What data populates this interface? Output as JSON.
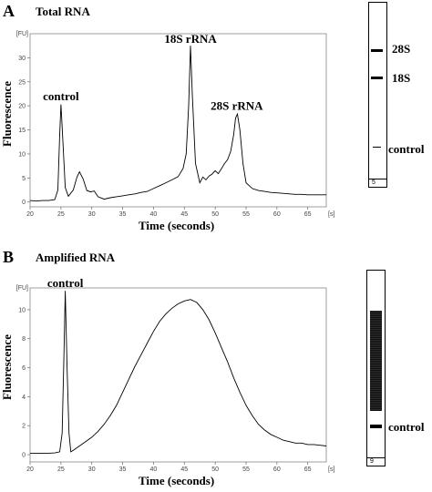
{
  "panels": [
    {
      "letter": "A",
      "title": "Total RNA",
      "ylabel": "Fluorescence",
      "xlabel": "Time (seconds)",
      "lane_number": "5",
      "bands": [
        {
          "label": "28S",
          "time": 53.5,
          "strong": true
        },
        {
          "label": "18S",
          "time": 46,
          "strong": true
        },
        {
          "label": "control",
          "time": 25,
          "strong": false
        }
      ]
    },
    {
      "letter": "B",
      "title": "Amplified RNA",
      "ylabel": "Fluorescence",
      "xlabel": "Time (seconds)",
      "lane_number": "9",
      "bands": [
        {
          "label": "control",
          "time": 26,
          "strong": true
        }
      ]
    }
  ],
  "chart_data": [
    {
      "type": "line",
      "title": "Total RNA",
      "xlabel": "Time (seconds)",
      "ylabel": "Fluorescence",
      "y_unit": "[FU]",
      "x_unit": "[s]",
      "xlim": [
        20,
        68
      ],
      "ylim": [
        -1,
        35
      ],
      "xticks": [
        20,
        25,
        30,
        35,
        40,
        45,
        50,
        55,
        60,
        65
      ],
      "yticks": [
        0,
        5,
        10,
        15,
        20,
        25,
        30
      ],
      "annotations": [
        {
          "text": "control",
          "x": 25,
          "y": 20
        },
        {
          "text": "18S  rRNA",
          "x": 46,
          "y": 32
        },
        {
          "text": "28S  rRNA",
          "x": 53.5,
          "y": 18
        }
      ],
      "series": [
        {
          "x": [
            20,
            21,
            22,
            23,
            24,
            24.5,
            24.8,
            25,
            25.3,
            25.7,
            26.2,
            27,
            27.6,
            28,
            28.6,
            29.2,
            29.8,
            30.4,
            31,
            32,
            33,
            34,
            35,
            36,
            37,
            38,
            39,
            40,
            41,
            42,
            43,
            44,
            44.8,
            45.3,
            45.7,
            46,
            46.3,
            46.8,
            47.5,
            48,
            48.5,
            49,
            49.5,
            50,
            50.5,
            51,
            51.5,
            52,
            52.5,
            53,
            53.3,
            53.6,
            54,
            54.5,
            55,
            56,
            57,
            58,
            59,
            60,
            61,
            62,
            63,
            64,
            65,
            66,
            67,
            68
          ],
          "y": [
            0.3,
            0.2,
            0.3,
            0.3,
            0.5,
            2.5,
            14,
            20.3,
            13,
            3,
            1.2,
            2.5,
            5.2,
            6.3,
            4.8,
            2.4,
            2.1,
            2.3,
            1.1,
            0.6,
            0.9,
            1.1,
            1.3,
            1.5,
            1.7,
            2.0,
            2.2,
            2.8,
            3.4,
            4.0,
            4.6,
            5.3,
            7,
            10,
            20,
            32.5,
            22,
            8,
            4,
            5.2,
            4.6,
            5.4,
            5.8,
            6.5,
            5.9,
            6.9,
            8,
            8.8,
            10.5,
            14,
            17.5,
            18.3,
            15,
            8,
            4,
            2.8,
            2.4,
            2.2,
            2.0,
            1.9,
            1.8,
            1.7,
            1.6,
            1.6,
            1.5,
            1.5,
            1.5,
            1.5
          ]
        }
      ]
    },
    {
      "type": "line",
      "title": "Amplified RNA",
      "xlabel": "Time (seconds)",
      "ylabel": "Fluorescence",
      "y_unit": "[FU]",
      "x_unit": "[s]",
      "xlim": [
        20,
        68
      ],
      "ylim": [
        -0.5,
        11.5
      ],
      "xticks": [
        20,
        25,
        30,
        35,
        40,
        45,
        50,
        55,
        60,
        65
      ],
      "yticks": [
        0,
        2,
        4,
        6,
        8,
        10
      ],
      "annotations": [
        {
          "text": "control",
          "x": 25.7,
          "y": 11.2
        }
      ],
      "series": [
        {
          "x": [
            20,
            21,
            22,
            23,
            24,
            24.8,
            25.2,
            25.5,
            25.7,
            26,
            26.3,
            26.6,
            27,
            28,
            29,
            30,
            31,
            32,
            33,
            34,
            35,
            36,
            37,
            38,
            39,
            40,
            41,
            42,
            43,
            44,
            45,
            46,
            47,
            48,
            49,
            50,
            51,
            52,
            53,
            54,
            55,
            56,
            57,
            58,
            59,
            60,
            61,
            62,
            63,
            64,
            65,
            66,
            67,
            68
          ],
          "y": [
            0.1,
            0.1,
            0.1,
            0.1,
            0.12,
            0.2,
            1.5,
            7,
            11.3,
            6,
            1.5,
            0.2,
            0.3,
            0.6,
            0.9,
            1.2,
            1.6,
            2.1,
            2.7,
            3.4,
            4.3,
            5.2,
            6.1,
            6.9,
            7.7,
            8.5,
            9.2,
            9.7,
            10.1,
            10.4,
            10.6,
            10.7,
            10.5,
            10.0,
            9.3,
            8.4,
            7.4,
            6.4,
            5.3,
            4.3,
            3.4,
            2.7,
            2.1,
            1.7,
            1.4,
            1.2,
            1.0,
            0.9,
            0.8,
            0.8,
            0.7,
            0.7,
            0.65,
            0.6
          ]
        }
      ]
    }
  ]
}
